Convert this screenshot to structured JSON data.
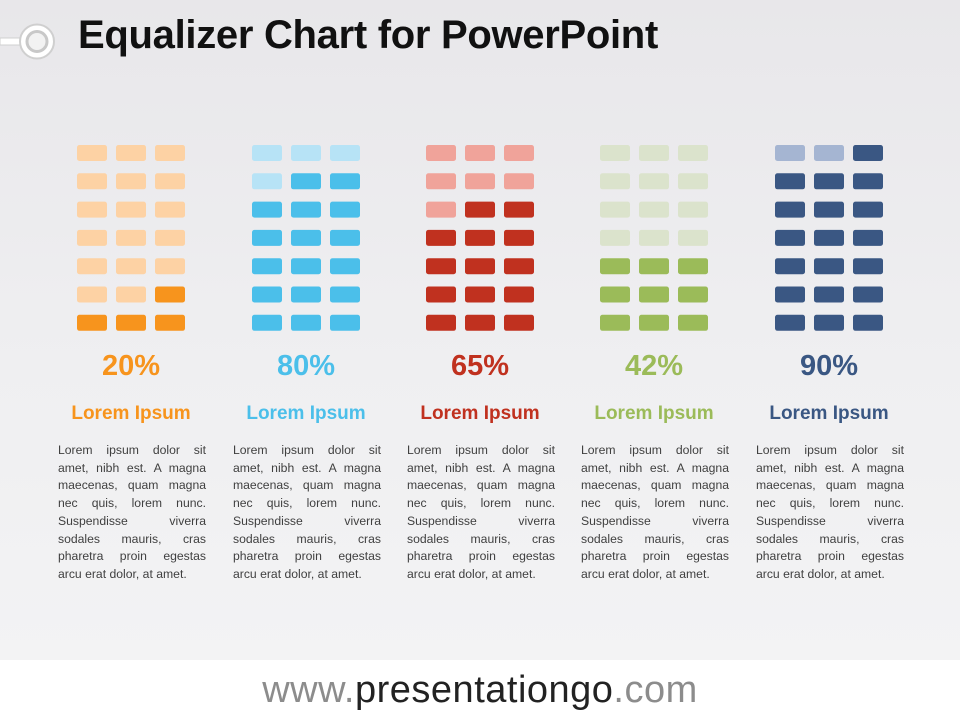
{
  "title": "Equalizer Chart for PowerPoint",
  "footer": {
    "prefix": "www.",
    "site": "presentationgo",
    "suffix": ".com"
  },
  "chart_data": {
    "type": "bar",
    "categories": [
      "Lorem Ipsum",
      "Lorem Ipsum",
      "Lorem Ipsum",
      "Lorem Ipsum",
      "Lorem Ipsum"
    ],
    "values": [
      20,
      80,
      65,
      42,
      90
    ],
    "value_labels": [
      "20%",
      "80%",
      "65%",
      "42%",
      "90%"
    ],
    "ylim": [
      0,
      100
    ],
    "grid": false,
    "segment_grid": {
      "rows": 7,
      "columns_per_bar": 3
    },
    "colors": [
      {
        "main": "#f7941d",
        "light": "#fdd2a4"
      },
      {
        "main": "#4bbfea",
        "light": "#b7e3f6"
      },
      {
        "main": "#c0311f",
        "light": "#f0a39a"
      },
      {
        "main": "#9bbb59",
        "light": "#dbe3cc"
      },
      {
        "main": "#3a5783",
        "light": "#a5b5d2"
      }
    ],
    "descriptions": [
      "Lorem ipsum dolor sit amet, nibh est. A magna maecenas, quam magna nec quis, lorem nunc. Suspendisse viverra sodales mauris, cras pharetra proin egestas arcu erat dolor, at amet.",
      "Lorem ipsum dolor sit amet, nibh est. A magna maecenas, quam magna nec quis, lorem nunc. Suspendisse viverra sodales mauris, cras pharetra proin egestas arcu erat dolor, at amet.",
      "Lorem ipsum dolor sit amet, nibh est. A magna maecenas, quam magna nec quis, lorem nunc. Suspendisse viverra sodales mauris, cras pharetra proin egestas arcu erat dolor, at amet.",
      "Lorem ipsum dolor sit amet, nibh est. A magna maecenas, quam magna nec quis, lorem nunc. Suspendisse viverra sodales mauris, cras pharetra proin egestas arcu erat dolor, at amet.",
      "Lorem ipsum dolor sit amet, nibh est. A magna maecenas, quam magna nec quis, lorem nunc. Suspendisse viverra sodales mauris, cras pharetra proin egestas arcu erat dolor, at amet."
    ]
  }
}
